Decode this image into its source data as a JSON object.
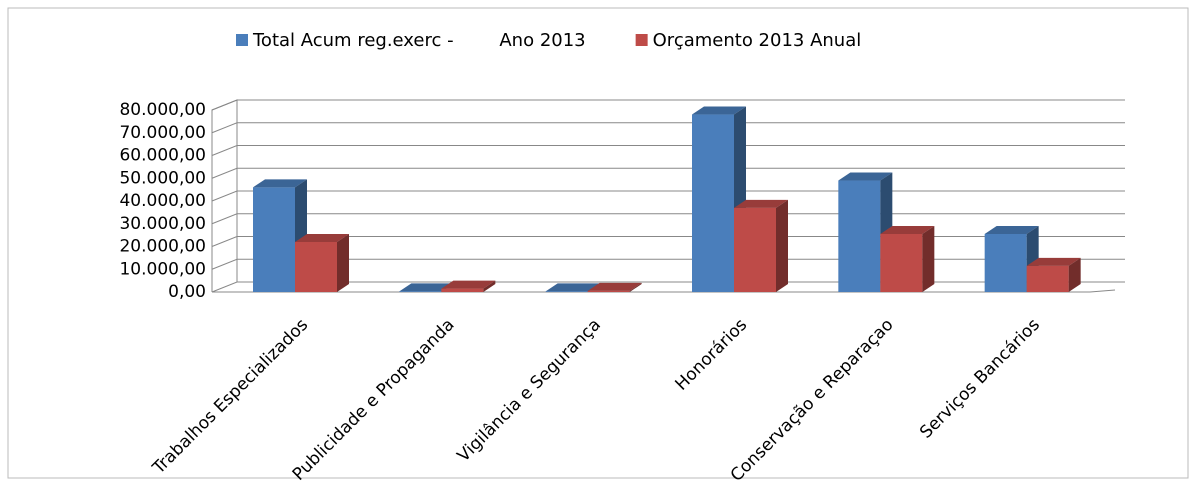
{
  "chart_data": {
    "type": "bar3d",
    "categories": [
      "Trabalhos Especializados",
      "Publicidade e Propaganda",
      "Vigilância e Segurança",
      "Honorários",
      "Conservação e Reparaçao",
      "Serviços Bancários"
    ],
    "series": [
      {
        "name": "Total Acum reg.exerc -        Ano 2013",
        "color": "#4a7ebb",
        "values": [
          46000,
          300,
          300,
          78000,
          49000,
          25500
        ]
      },
      {
        "name": "Orçamento 2013 Anual",
        "color": "#be4b48",
        "values": [
          22000,
          1500,
          500,
          37000,
          25500,
          11500
        ]
      }
    ],
    "ylim": [
      0,
      80000
    ],
    "yticks": [
      {
        "value": 0,
        "label": "0,00"
      },
      {
        "value": 10000,
        "label": "10.000,00"
      },
      {
        "value": 20000,
        "label": "20.000,00"
      },
      {
        "value": 30000,
        "label": "30.000,00"
      },
      {
        "value": 40000,
        "label": "40.000,00"
      },
      {
        "value": 50000,
        "label": "50.000,00"
      },
      {
        "value": 60000,
        "label": "60.000,00"
      },
      {
        "value": 70000,
        "label": "70.000,00"
      },
      {
        "value": 80000,
        "label": "80.000,00"
      }
    ],
    "grid": true,
    "legend": "top"
  }
}
